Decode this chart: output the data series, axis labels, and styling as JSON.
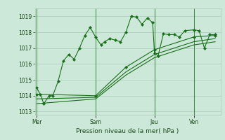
{
  "bg_color": "#cce8d8",
  "grid_color": "#aaccbb",
  "line_color": "#1a6e1a",
  "title": "Pression niveau de la mer( hPa )",
  "ylim": [
    1012.8,
    1019.5
  ],
  "yticks": [
    1013,
    1014,
    1015,
    1016,
    1017,
    1018,
    1019
  ],
  "day_labels": [
    "Mer",
    "Sam",
    "Jeu",
    "Ven"
  ],
  "day_positions": [
    0.0,
    0.33,
    0.66,
    0.88
  ],
  "vline_positions": [
    0.0,
    0.33,
    0.66,
    0.88
  ],
  "series1_x": [
    0.0,
    0.02,
    0.04,
    0.07,
    0.09,
    0.12,
    0.15,
    0.18,
    0.21,
    0.24,
    0.27,
    0.3,
    0.33,
    0.36,
    0.38,
    0.41,
    0.44,
    0.47,
    0.5,
    0.53,
    0.56,
    0.59,
    0.62,
    0.65,
    0.66,
    0.68,
    0.71,
    0.74,
    0.77,
    0.8,
    0.83,
    0.88,
    0.91,
    0.94,
    0.97,
    1.0
  ],
  "series1_y": [
    1014.5,
    1014.1,
    1013.5,
    1014.0,
    1014.0,
    1014.9,
    1016.2,
    1016.6,
    1016.3,
    1017.0,
    1017.8,
    1018.3,
    1017.7,
    1017.2,
    1017.4,
    1017.6,
    1017.5,
    1017.4,
    1018.0,
    1019.0,
    1018.95,
    1018.5,
    1018.9,
    1018.6,
    1016.7,
    1016.5,
    1017.9,
    1017.85,
    1017.85,
    1017.7,
    1018.1,
    1018.15,
    1018.1,
    1017.0,
    1017.85,
    1017.85
  ],
  "series2_x": [
    0.0,
    0.33,
    0.5,
    0.66,
    0.88,
    1.0
  ],
  "series2_y": [
    1014.1,
    1014.0,
    1015.8,
    1016.9,
    1017.7,
    1017.8
  ],
  "series3_x": [
    0.0,
    0.33,
    0.5,
    0.66,
    0.88,
    1.0
  ],
  "series3_y": [
    1013.8,
    1013.9,
    1015.5,
    1016.6,
    1017.4,
    1017.6
  ],
  "series4_x": [
    0.0,
    0.33,
    0.5,
    0.66,
    0.88,
    1.0
  ],
  "series4_y": [
    1013.5,
    1013.8,
    1015.3,
    1016.4,
    1017.2,
    1017.4
  ]
}
